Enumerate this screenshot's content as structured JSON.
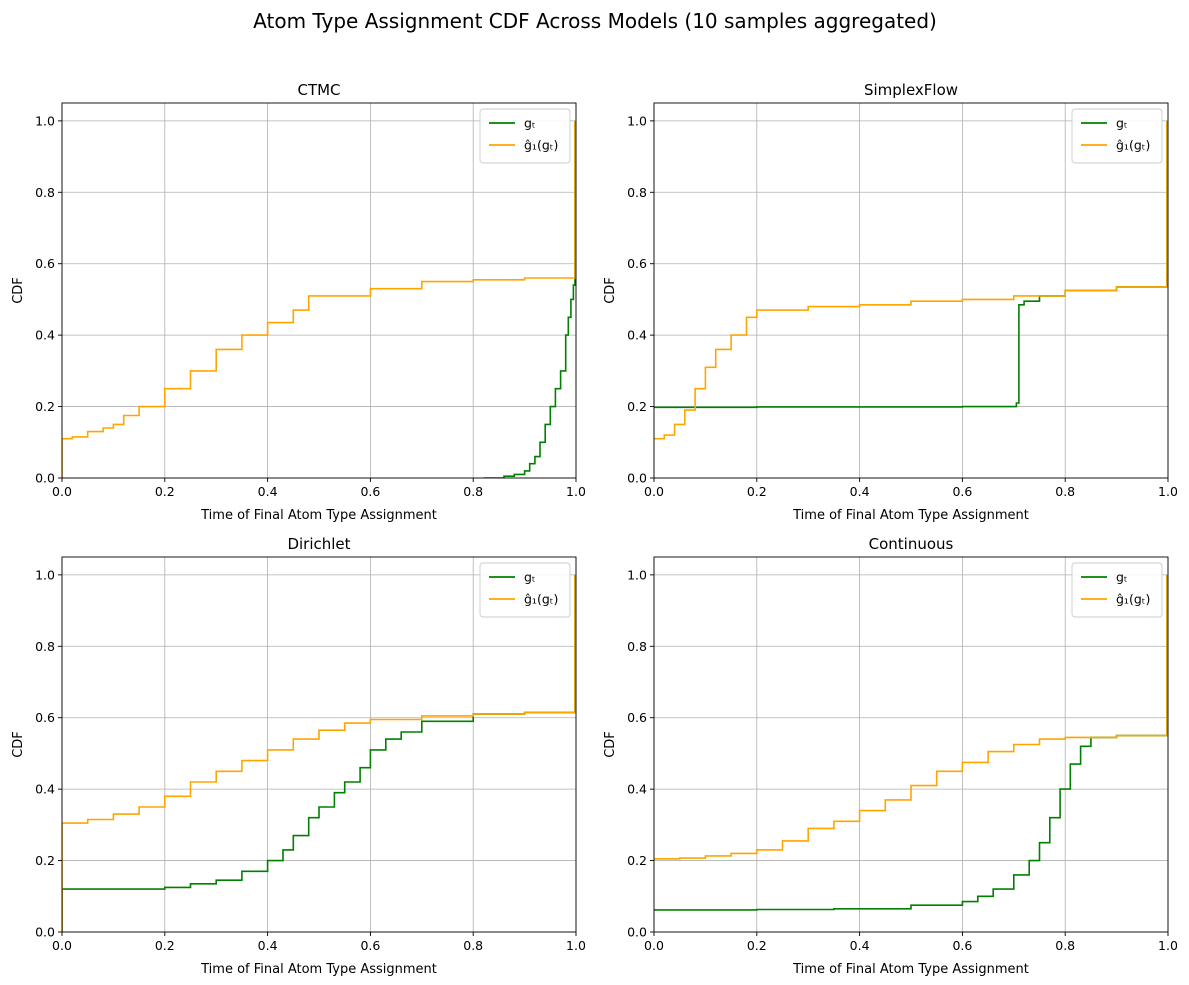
{
  "suptitle": "Atom Type Assignment CDF Across Models (10 samples aggregated)",
  "colors": {
    "gt": "#008000",
    "ghat": "#FFA500",
    "grid": "#b0b0b0",
    "axis": "#000000"
  },
  "chart_data": [
    {
      "type": "line",
      "title": "CTMC",
      "xlabel": "Time of Final Atom Type Assignment",
      "ylabel": "CDF",
      "xlim": [
        0,
        1
      ],
      "ylim": [
        0,
        1.05
      ],
      "xticks": [
        "0.0",
        "0.2",
        "0.4",
        "0.6",
        "0.8",
        "1.0"
      ],
      "yticks": [
        "0.0",
        "0.2",
        "0.4",
        "0.6",
        "0.8",
        "1.0"
      ],
      "grid": true,
      "legend_position": "upper right",
      "series": [
        {
          "name": "gₜ",
          "color": "#008000",
          "x": [
            0.82,
            0.86,
            0.88,
            0.9,
            0.91,
            0.92,
            0.93,
            0.94,
            0.95,
            0.96,
            0.97,
            0.98,
            0.985,
            0.99,
            0.995,
            0.998,
            0.998
          ],
          "y": [
            0.0,
            0.005,
            0.01,
            0.02,
            0.04,
            0.06,
            0.1,
            0.15,
            0.2,
            0.25,
            0.3,
            0.4,
            0.45,
            0.5,
            0.54,
            0.58,
            1.0
          ]
        },
        {
          "name": "ĝ₁(gₜ)",
          "color": "#FFA500",
          "x": [
            0.0,
            0.0,
            0.02,
            0.05,
            0.08,
            0.1,
            0.12,
            0.15,
            0.2,
            0.25,
            0.3,
            0.35,
            0.4,
            0.45,
            0.48,
            0.6,
            0.7,
            0.8,
            0.9,
            0.998,
            0.998
          ],
          "y": [
            0.0,
            0.11,
            0.115,
            0.13,
            0.14,
            0.15,
            0.175,
            0.2,
            0.25,
            0.3,
            0.36,
            0.4,
            0.435,
            0.47,
            0.51,
            0.53,
            0.55,
            0.555,
            0.56,
            0.58,
            1.0
          ]
        }
      ]
    },
    {
      "type": "line",
      "title": "SimplexFlow",
      "xlabel": "Time of Final Atom Type Assignment",
      "ylabel": "CDF",
      "xlim": [
        0,
        1
      ],
      "ylim": [
        0,
        1.05
      ],
      "xticks": [
        "0.0",
        "0.2",
        "0.4",
        "0.6",
        "0.8",
        "1.0"
      ],
      "yticks": [
        "0.0",
        "0.2",
        "0.4",
        "0.6",
        "0.8",
        "1.0"
      ],
      "grid": true,
      "legend_position": "upper right",
      "series": [
        {
          "name": "gₜ",
          "color": "#008000",
          "x": [
            0.0,
            0.2,
            0.4,
            0.6,
            0.7,
            0.705,
            0.71,
            0.72,
            0.75,
            0.8,
            0.9,
            0.998,
            0.998
          ],
          "y": [
            0.198,
            0.199,
            0.199,
            0.2,
            0.2,
            0.21,
            0.485,
            0.495,
            0.51,
            0.525,
            0.535,
            0.545,
            1.0
          ]
        },
        {
          "name": "ĝ₁(gₜ)",
          "color": "#FFA500",
          "x": [
            0.0,
            0.02,
            0.04,
            0.06,
            0.08,
            0.1,
            0.12,
            0.15,
            0.18,
            0.2,
            0.3,
            0.4,
            0.5,
            0.6,
            0.7,
            0.8,
            0.9,
            0.998,
            0.998
          ],
          "y": [
            0.11,
            0.12,
            0.15,
            0.19,
            0.25,
            0.31,
            0.36,
            0.4,
            0.45,
            0.47,
            0.48,
            0.485,
            0.495,
            0.5,
            0.51,
            0.525,
            0.535,
            0.545,
            1.0
          ]
        }
      ]
    },
    {
      "type": "line",
      "title": "Dirichlet",
      "xlabel": "Time of Final Atom Type Assignment",
      "ylabel": "CDF",
      "xlim": [
        0,
        1
      ],
      "ylim": [
        0,
        1.05
      ],
      "xticks": [
        "0.0",
        "0.2",
        "0.4",
        "0.6",
        "0.8",
        "1.0"
      ],
      "yticks": [
        "0.0",
        "0.2",
        "0.4",
        "0.6",
        "0.8",
        "1.0"
      ],
      "grid": true,
      "legend_position": "upper right",
      "series": [
        {
          "name": "gₜ",
          "color": "#008000",
          "x": [
            0.0,
            0.0,
            0.1,
            0.2,
            0.25,
            0.3,
            0.35,
            0.4,
            0.43,
            0.45,
            0.48,
            0.5,
            0.53,
            0.55,
            0.58,
            0.6,
            0.63,
            0.66,
            0.7,
            0.8,
            0.9,
            0.998,
            0.998
          ],
          "y": [
            0.0,
            0.12,
            0.12,
            0.125,
            0.135,
            0.145,
            0.17,
            0.2,
            0.23,
            0.27,
            0.32,
            0.35,
            0.39,
            0.42,
            0.46,
            0.51,
            0.54,
            0.56,
            0.59,
            0.61,
            0.615,
            0.62,
            1.0
          ]
        },
        {
          "name": "ĝ₁(gₜ)",
          "color": "#FFA500",
          "x": [
            0.0,
            0.0,
            0.05,
            0.1,
            0.15,
            0.2,
            0.25,
            0.3,
            0.35,
            0.4,
            0.45,
            0.5,
            0.55,
            0.6,
            0.7,
            0.8,
            0.9,
            0.998,
            0.998
          ],
          "y": [
            0.0,
            0.305,
            0.315,
            0.33,
            0.35,
            0.38,
            0.42,
            0.45,
            0.48,
            0.51,
            0.54,
            0.565,
            0.585,
            0.595,
            0.605,
            0.61,
            0.615,
            0.625,
            1.0
          ]
        }
      ]
    },
    {
      "type": "line",
      "title": "Continuous",
      "xlabel": "Time of Final Atom Type Assignment",
      "ylabel": "CDF",
      "xlim": [
        0,
        1
      ],
      "ylim": [
        0,
        1.05
      ],
      "xticks": [
        "0.0",
        "0.2",
        "0.4",
        "0.6",
        "0.8",
        "1.0"
      ],
      "yticks": [
        "0.0",
        "0.2",
        "0.4",
        "0.6",
        "0.8",
        "1.0"
      ],
      "grid": true,
      "legend_position": "upper right",
      "series": [
        {
          "name": "gₜ",
          "color": "#008000",
          "x": [
            0.0,
            0.2,
            0.35,
            0.5,
            0.6,
            0.63,
            0.66,
            0.7,
            0.73,
            0.75,
            0.77,
            0.79,
            0.81,
            0.83,
            0.85,
            0.9,
            0.998,
            0.998
          ],
          "y": [
            0.062,
            0.063,
            0.065,
            0.075,
            0.085,
            0.1,
            0.12,
            0.16,
            0.2,
            0.25,
            0.32,
            0.4,
            0.47,
            0.52,
            0.545,
            0.55,
            0.555,
            1.0
          ]
        },
        {
          "name": "ĝ₁(gₜ)",
          "color": "#FFA500",
          "x": [
            0.0,
            0.05,
            0.1,
            0.15,
            0.2,
            0.25,
            0.3,
            0.35,
            0.4,
            0.45,
            0.5,
            0.55,
            0.6,
            0.65,
            0.7,
            0.75,
            0.8,
            0.9,
            0.998,
            0.998
          ],
          "y": [
            0.205,
            0.207,
            0.213,
            0.22,
            0.23,
            0.255,
            0.29,
            0.31,
            0.34,
            0.37,
            0.41,
            0.45,
            0.475,
            0.505,
            0.525,
            0.54,
            0.545,
            0.55,
            0.555,
            1.0
          ]
        }
      ]
    }
  ]
}
